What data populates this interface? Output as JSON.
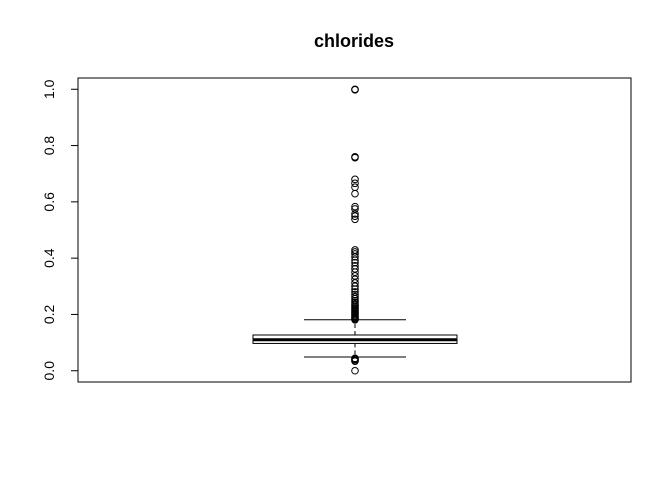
{
  "chart_data": {
    "type": "boxplot",
    "title": "chlorides",
    "xlabel": "",
    "ylabel": "",
    "ylim": [
      -0.04,
      1.04
    ],
    "yticks": [
      0.0,
      0.2,
      0.4,
      0.6,
      0.8,
      1.0
    ],
    "ytick_labels": [
      "0.0",
      "0.2",
      "0.4",
      "0.6",
      "0.8",
      "1.0"
    ],
    "grid": false,
    "legend": "none",
    "box": {
      "q1": 0.097,
      "median": 0.11,
      "q3": 0.127,
      "whisker_low": 0.049,
      "whisker_high": 0.181
    },
    "outliers": [
      0.0,
      0.034,
      0.036,
      0.04,
      0.042,
      0.044,
      0.181,
      0.184,
      0.187,
      0.19,
      0.194,
      0.198,
      0.202,
      0.206,
      0.21,
      0.214,
      0.218,
      0.222,
      0.227,
      0.232,
      0.237,
      0.243,
      0.249,
      0.256,
      0.263,
      0.271,
      0.28,
      0.29,
      0.3,
      0.312,
      0.325,
      0.337,
      0.35,
      0.362,
      0.373,
      0.384,
      0.393,
      0.405,
      0.415,
      0.422,
      0.429,
      0.538,
      0.549,
      0.557,
      0.575,
      0.583,
      0.629,
      0.652,
      0.666,
      0.68,
      0.757,
      0.76,
      0.998,
      1.0
    ],
    "colors": {
      "stroke": "#000000",
      "background": "#ffffff"
    }
  }
}
